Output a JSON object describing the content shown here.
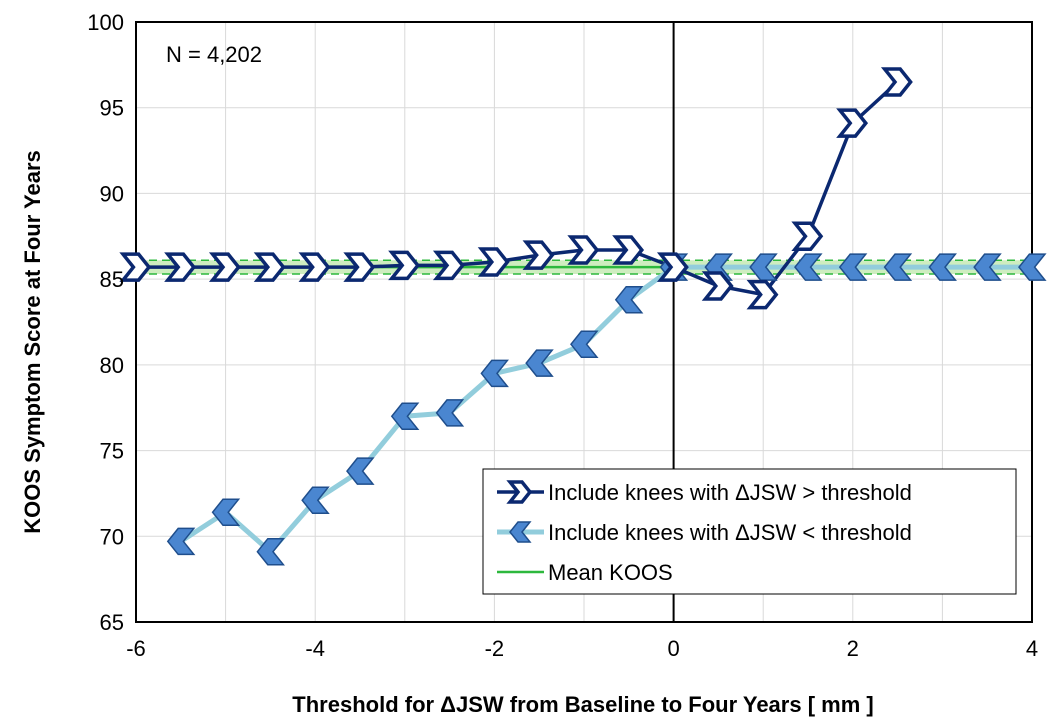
{
  "chart_data": {
    "type": "line",
    "xlabel": "Threshold for ΔJSW from Baseline to Four Years [ mm ]",
    "ylabel": "KOOS Symptom Score at Four Years",
    "xlim": [
      -6,
      4
    ],
    "ylim": [
      65,
      100
    ],
    "x_ticks": [
      "-6",
      "-4",
      "-2",
      "0",
      "2",
      "4"
    ],
    "y_ticks": [
      "65",
      "70",
      "75",
      "80",
      "85",
      "90",
      "95",
      "100"
    ],
    "grid": true,
    "legend_position": "bottom-right",
    "annotation": "N = 4,202",
    "series": [
      {
        "name": "Include knees with ΔJSW > threshold",
        "color": "#0b2870",
        "marker": "right-chevron-outline",
        "x": [
          -6,
          -5.5,
          -5,
          -4.5,
          -4,
          -3.5,
          -3,
          -2.5,
          -2,
          -1.5,
          -1,
          -0.5,
          0,
          0.5,
          1,
          1.5,
          2,
          2.5
        ],
        "y": [
          85.7,
          85.7,
          85.7,
          85.7,
          85.7,
          85.7,
          85.8,
          85.8,
          86.0,
          86.4,
          86.7,
          86.7,
          85.7,
          84.6,
          84.1,
          87.5,
          94.1,
          96.5
        ]
      },
      {
        "name": "Include knees with ΔJSW < threshold",
        "color": "#92cddc",
        "marker_color": "#4a86d0",
        "marker": "left-chevron-filled",
        "x": [
          -5.5,
          -5,
          -4.5,
          -4,
          -3.5,
          -3,
          -2.5,
          -2,
          -1.5,
          -1,
          -0.5,
          0,
          0.5,
          1,
          1.5,
          2,
          2.5,
          3,
          3.5,
          4
        ],
        "y": [
          69.7,
          71.4,
          69.1,
          72.1,
          73.8,
          77.0,
          77.2,
          79.5,
          80.1,
          81.2,
          83.8,
          85.7,
          85.7,
          85.7,
          85.7,
          85.7,
          85.7,
          85.7,
          85.7,
          85.7
        ]
      },
      {
        "name": "Mean KOOS",
        "color": "#2db83d",
        "band_color": "#c6eab4",
        "x": [
          -6,
          4
        ],
        "y": [
          85.7,
          85.7
        ],
        "band": [
          85.3,
          86.1
        ]
      }
    ]
  }
}
